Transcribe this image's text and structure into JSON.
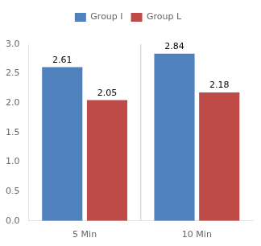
{
  "chart_data": {
    "type": "bar",
    "categories": [
      "5 Min",
      "10 Min"
    ],
    "series": [
      {
        "name": "Group I",
        "color": "#4F81BD",
        "values": [
          2.61,
          2.84
        ]
      },
      {
        "name": "Group L",
        "color": "#BE4B48",
        "values": [
          2.05,
          2.18
        ]
      }
    ],
    "ylim": [
      0,
      3.0
    ],
    "yticks": [
      {
        "value": 0,
        "label": "0.0"
      },
      0.5,
      {
        "value": 1,
        "label": "1.0"
      },
      1.5,
      {
        "value": 2,
        "label": "2.0"
      },
      2.5,
      {
        "value": 3,
        "label": "3.0"
      }
    ],
    "data_labels": true,
    "legend": "top",
    "grid": false
  }
}
